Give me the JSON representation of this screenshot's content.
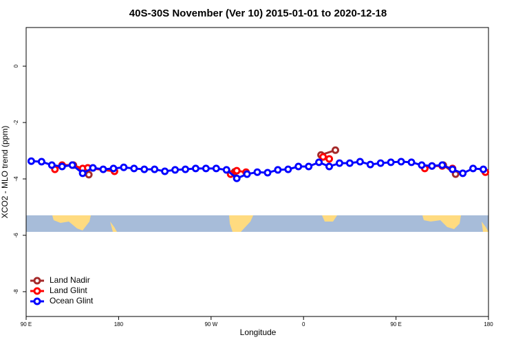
{
  "chart_data": {
    "type": "line",
    "title": "40S-30S November (Ver 10)   2015-01-01 to 2020-12-18",
    "x_label": "Longitude",
    "y_label": "XCO2 - MLO trend (ppm)",
    "xlim": [
      90,
      540
    ],
    "ylim": [
      -8.88,
      1.37
    ],
    "xticks": [
      {
        "value": 90,
        "label": "90 E"
      },
      180,
      {
        "value": 270,
        "label": "90 W"
      },
      {
        "value": 360,
        "label": "0"
      },
      {
        "value": 450,
        "label": "90 E"
      },
      {
        "value": 540,
        "label": "180"
      }
    ],
    "yticks": [
      0,
      -2,
      -4,
      -6,
      -8
    ],
    "legend": "bottom-left",
    "series": [
      {
        "name": "Land Nadir",
        "color": "#a52a2a",
        "x": [
          136,
          151,
          200,
          293,
          330,
          377,
          391,
          440,
          496,
          508
        ],
        "values": [
          -3.51,
          -3.85,
          null,
          -3.75,
          null,
          -3.15,
          -2.98,
          null,
          -3.51,
          -3.83
        ]
      },
      {
        "name": "Land Glint",
        "color": "#ff0000",
        "x": [
          118,
          125,
          135,
          145,
          150,
          176,
          230,
          289,
          295,
          304,
          340,
          379,
          385,
          440,
          478,
          485,
          495,
          505,
          520,
          537
        ],
        "values": [
          -3.66,
          -3.51,
          -3.51,
          -3.63,
          -3.61,
          -3.73,
          null,
          -3.83,
          -3.71,
          -3.76,
          null,
          -3.22,
          -3.29,
          null,
          -3.63,
          -3.54,
          -3.54,
          -3.63,
          null,
          -3.76
        ]
      },
      {
        "name": "Ocean Glint",
        "color": "#0000ff",
        "x": [
          95,
          105,
          115,
          125,
          135,
          145,
          155,
          165,
          175,
          185,
          195,
          205,
          215,
          225,
          235,
          245,
          255,
          265,
          275,
          285,
          295,
          305,
          315,
          325,
          335,
          345,
          355,
          365,
          375,
          385,
          395,
          405,
          415,
          425,
          435,
          445,
          455,
          465,
          475,
          485,
          495,
          505,
          515,
          525,
          535
        ],
        "values": [
          -3.37,
          -3.39,
          -3.51,
          -3.56,
          -3.51,
          -3.8,
          -3.61,
          -3.66,
          -3.63,
          -3.59,
          -3.63,
          -3.66,
          -3.66,
          -3.73,
          -3.68,
          -3.66,
          -3.63,
          -3.63,
          -3.63,
          -3.68,
          -3.98,
          -3.83,
          -3.76,
          -3.78,
          -3.68,
          -3.66,
          -3.56,
          -3.56,
          -3.41,
          -3.56,
          -3.44,
          -3.44,
          -3.39,
          -3.49,
          -3.44,
          -3.41,
          -3.39,
          -3.41,
          -3.51,
          -3.54,
          -3.51,
          -3.66,
          -3.8,
          -3.63,
          -3.66
        ]
      }
    ]
  }
}
